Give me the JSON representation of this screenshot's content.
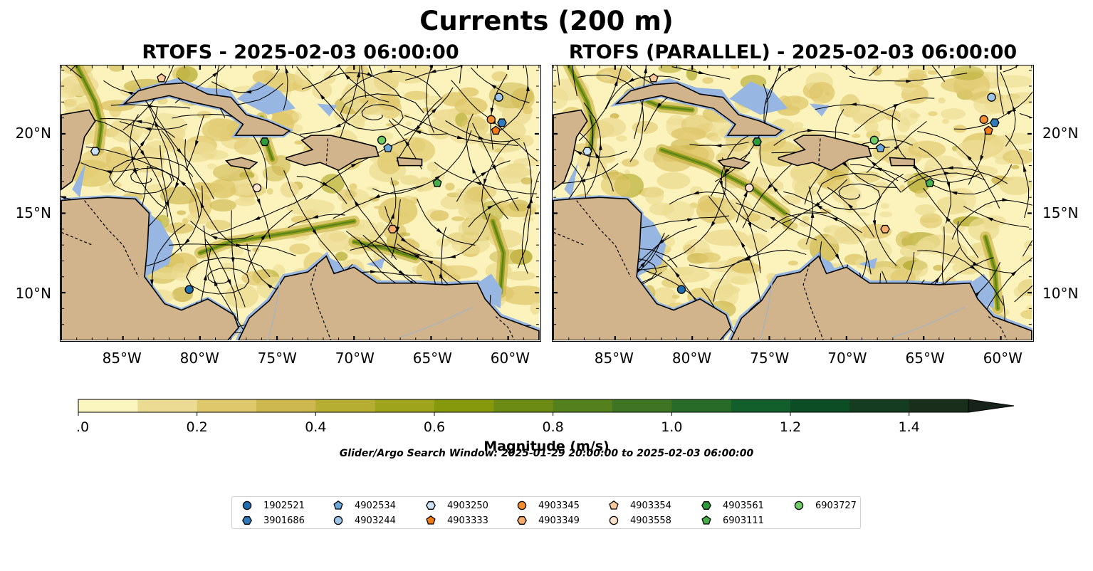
{
  "title": "Currents (200 m)",
  "panels": [
    {
      "title": "RTOFS - 2025-02-03 06:00:00",
      "variant": "a"
    },
    {
      "title": "RTOFS (PARALLEL) - 2025-02-03 06:00:00",
      "variant": "b"
    }
  ],
  "map_extent": {
    "lon_min": -89.0,
    "lon_max": -58.0,
    "lat_min": 7.0,
    "lat_max": 24.3
  },
  "lon_ticks": [
    {
      "value": -85,
      "label": "85°W"
    },
    {
      "value": -80,
      "label": "80°W"
    },
    {
      "value": -75,
      "label": "75°W"
    },
    {
      "value": -70,
      "label": "70°W"
    },
    {
      "value": -65,
      "label": "65°W"
    },
    {
      "value": -60,
      "label": "60°W"
    }
  ],
  "lat_ticks": [
    {
      "value": 20,
      "label": "20°N"
    },
    {
      "value": 15,
      "label": "15°N"
    },
    {
      "value": 10,
      "label": "10°N"
    }
  ],
  "colorbar": {
    "label": "Magnitude (m/s)",
    "min": 0.0,
    "max": 1.5,
    "step": 0.1,
    "tick_labels": [
      "0.0",
      "0.2",
      "0.4",
      "0.6",
      "0.8",
      "1.0",
      "1.2",
      "1.4"
    ],
    "extend": "max",
    "colors": [
      "#fbf5c0",
      "#ecdc93",
      "#dfc76b",
      "#cdb74f",
      "#b6ad33",
      "#9ea51d",
      "#86990d",
      "#6c8b14",
      "#55801e",
      "#3f7424",
      "#286a28",
      "#135f2b",
      "#0d4d26",
      "#153c21",
      "#1a2f1b",
      "#17231a"
    ]
  },
  "colors": {
    "land": "#d2b48c",
    "shelf": "#97b6e1",
    "ocean": "#fbf3bb"
  },
  "search_window": "Glider/Argo Search Window: 2025-01-29 20:00:00 to 2025-02-03 06:00:00",
  "legend": [
    {
      "id": "1902521",
      "marker": "circle",
      "color": "#1f6fb0"
    },
    {
      "id": "3901686",
      "marker": "hexagon",
      "color": "#2f7bbd"
    },
    {
      "id": "4902534",
      "marker": "pentagon",
      "color": "#6ba6d9"
    },
    {
      "id": "4903244",
      "marker": "circle",
      "color": "#9ec5e8"
    },
    {
      "id": "4903250",
      "marker": "hexagon",
      "color": "#cce2f5"
    },
    {
      "id": "4903333",
      "marker": "pentagon",
      "color": "#f07a14"
    },
    {
      "id": "4903345",
      "marker": "circle",
      "color": "#f58c2d"
    },
    {
      "id": "4903349",
      "marker": "hexagon",
      "color": "#f9ad6c"
    },
    {
      "id": "4903354",
      "marker": "pentagon",
      "color": "#fcc99a"
    },
    {
      "id": "4903558",
      "marker": "circle",
      "color": "#fde2cc"
    },
    {
      "id": "4903561",
      "marker": "hexagon",
      "color": "#2e9a3a"
    },
    {
      "id": "6903111",
      "marker": "pentagon",
      "color": "#46ae4a"
    },
    {
      "id": "6903727",
      "marker": "circle",
      "color": "#6fcb64"
    }
  ],
  "floats": [
    {
      "id": "1902521",
      "lon": -80.7,
      "lat": 10.2
    },
    {
      "id": "3901686",
      "lon": -60.4,
      "lat": 20.7
    },
    {
      "id": "4902534",
      "lon": -67.8,
      "lat": 19.1
    },
    {
      "id": "4903244",
      "lon": -60.6,
      "lat": 22.3
    },
    {
      "id": "4903250",
      "lon": -86.8,
      "lat": 18.9
    },
    {
      "id": "4903333",
      "lon": -60.8,
      "lat": 20.2
    },
    {
      "id": "4903345",
      "lon": -61.1,
      "lat": 20.9
    },
    {
      "id": "4903349",
      "lon": -67.5,
      "lat": 14.0
    },
    {
      "id": "4903354",
      "lon": -82.5,
      "lat": 23.5
    },
    {
      "id": "4903558",
      "lon": -76.3,
      "lat": 16.6
    },
    {
      "id": "4903561",
      "lon": -75.8,
      "lat": 19.5
    },
    {
      "id": "6903111",
      "lon": -64.6,
      "lat": 16.9
    },
    {
      "id": "6903727",
      "lon": -68.2,
      "lat": 19.6
    }
  ]
}
